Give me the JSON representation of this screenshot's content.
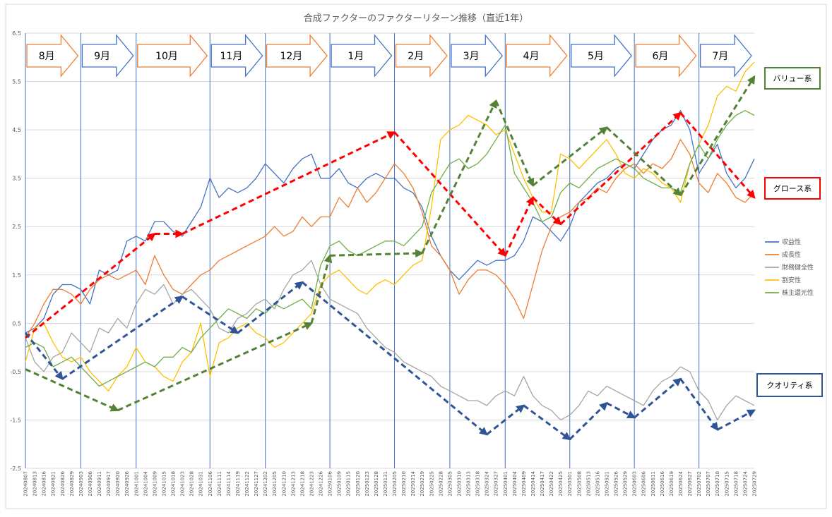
{
  "chart_data": {
    "type": "line",
    "title": "合成ファクターのファクターリターン推移（直近1年）",
    "ylim": [
      -2.5,
      6.5
    ],
    "y_ticks": [
      "6.5",
      "5.5",
      "4.5",
      "3.5",
      "2.5",
      "1.5",
      "0.5",
      "-0.5",
      "-1.5",
      "-2.5"
    ],
    "y_tick_values": [
      6.5,
      5.5,
      4.5,
      3.5,
      2.5,
      1.5,
      0.5,
      -0.5,
      -1.5,
      -2.5
    ],
    "grid": true,
    "legend_position": "right",
    "x_dates": [
      "20240807",
      "20240813",
      "20240816",
      "20240821",
      "20240826",
      "20240829",
      "20240903",
      "20240906",
      "20240911",
      "20240917",
      "20240920",
      "20240926",
      "20241001",
      "20241004",
      "20241009",
      "20241015",
      "20241018",
      "20241023",
      "20241028",
      "20241031",
      "20241106",
      "20241111",
      "20241114",
      "20241119",
      "20241122",
      "20241127",
      "20241202",
      "20241205",
      "20241210",
      "20241213",
      "20241218",
      "20241223",
      "20241226",
      "20250106",
      "20250109",
      "20250115",
      "20250120",
      "20250123",
      "20250128",
      "20250131",
      "20250205",
      "20250210",
      "20250214",
      "20250219",
      "20250225",
      "20250228",
      "20250305",
      "20250310",
      "20250313",
      "20250318",
      "20250324",
      "20250327",
      "20250401",
      "20250404",
      "20250409",
      "20250414",
      "20250417",
      "20250422",
      "20250425",
      "20250501",
      "20250508",
      "20250513",
      "20250516",
      "20250521",
      "20250526",
      "20250529",
      "20250603",
      "20250606",
      "20250611",
      "20250616",
      "20250619",
      "20250624",
      "20250627",
      "20250702",
      "20250707",
      "20250710",
      "20250715",
      "20250718",
      "20250724",
      "20250729"
    ],
    "series": [
      {
        "name": "収益性",
        "color": "#4472C4",
        "values": [
          0.3,
          0.4,
          0.6,
          1.1,
          1.3,
          1.3,
          1.2,
          0.9,
          1.6,
          1.5,
          1.6,
          2.2,
          2.3,
          2.2,
          2.6,
          2.6,
          2.4,
          2.3,
          2.6,
          2.9,
          3.5,
          3.1,
          3.3,
          3.2,
          3.3,
          3.5,
          3.8,
          3.6,
          3.4,
          3.7,
          3.9,
          4.0,
          3.5,
          3.5,
          3.7,
          3.4,
          3.3,
          3.5,
          3.6,
          3.5,
          3.5,
          3.3,
          3.2,
          2.9,
          2.3,
          1.9,
          1.6,
          1.4,
          1.6,
          1.8,
          1.7,
          1.8,
          1.8,
          1.9,
          2.2,
          2.7,
          2.6,
          2.4,
          2.2,
          2.5,
          3.0,
          3.2,
          3.4,
          3.5,
          3.7,
          3.8,
          3.7,
          4.0,
          4.3,
          4.5,
          4.6,
          4.9,
          4.5,
          3.6,
          3.9,
          4.2,
          3.6,
          3.3,
          3.5,
          3.9
        ]
      },
      {
        "name": "成長性",
        "color": "#ED7D31",
        "values": [
          0.2,
          0.5,
          0.9,
          1.2,
          1.2,
          1.1,
          0.9,
          1.2,
          1.4,
          1.5,
          1.4,
          1.5,
          1.6,
          1.3,
          1.9,
          1.5,
          1.2,
          1.1,
          1.3,
          1.5,
          1.6,
          1.8,
          1.9,
          2.0,
          2.1,
          2.2,
          2.3,
          2.5,
          2.3,
          2.4,
          2.7,
          2.5,
          2.7,
          2.7,
          3.1,
          2.9,
          3.3,
          3.0,
          3.2,
          3.5,
          3.8,
          3.6,
          3.3,
          2.8,
          2.1,
          1.9,
          1.6,
          1.1,
          1.4,
          1.6,
          1.6,
          1.5,
          1.3,
          1.0,
          0.6,
          1.3,
          2.0,
          2.5,
          2.7,
          2.8,
          3.0,
          3.1,
          3.3,
          3.2,
          3.5,
          3.7,
          3.8,
          3.6,
          3.8,
          3.7,
          3.9,
          4.3,
          4.0,
          3.4,
          3.2,
          3.6,
          3.4,
          3.1,
          3.0,
          3.2
        ]
      },
      {
        "name": "財務健全性",
        "color": "#A5A5A5",
        "values": [
          0.2,
          -0.3,
          -0.5,
          -0.2,
          -0.1,
          0.3,
          0.1,
          -0.1,
          0.4,
          0.3,
          0.6,
          0.4,
          0.9,
          1.2,
          1.1,
          1.3,
          0.9,
          1.1,
          1.2,
          1.0,
          0.8,
          0.4,
          0.3,
          0.6,
          0.7,
          0.9,
          1.0,
          0.8,
          1.2,
          1.5,
          1.6,
          1.8,
          1.3,
          1.0,
          0.9,
          0.8,
          0.7,
          0.4,
          0.2,
          0.0,
          -0.1,
          -0.3,
          -0.4,
          -0.5,
          -0.6,
          -0.8,
          -0.9,
          -1.0,
          -1.1,
          -1.1,
          -1.2,
          -1.0,
          -0.9,
          -1.0,
          -0.6,
          -1.0,
          -1.2,
          -1.3,
          -1.5,
          -1.4,
          -1.2,
          -0.9,
          -1.0,
          -0.8,
          -0.9,
          -1.0,
          -1.1,
          -1.2,
          -0.9,
          -0.7,
          -0.6,
          -0.4,
          -0.5,
          -0.9,
          -1.1,
          -1.5,
          -1.2,
          -1.0,
          -1.1,
          -1.2
        ]
      },
      {
        "name": "割安性",
        "color": "#FFC000",
        "values": [
          -0.3,
          0.4,
          0.5,
          0.1,
          -0.2,
          -0.3,
          -0.2,
          -0.5,
          -0.7,
          -0.9,
          -0.6,
          -0.4,
          0.0,
          -0.3,
          -0.4,
          -0.6,
          -0.7,
          -0.3,
          -0.1,
          0.5,
          -0.6,
          0.1,
          0.2,
          0.4,
          0.5,
          0.3,
          0.2,
          0.0,
          0.1,
          0.3,
          0.5,
          0.7,
          1.3,
          1.5,
          1.6,
          1.4,
          1.2,
          1.1,
          1.3,
          1.4,
          1.3,
          1.5,
          1.7,
          1.8,
          2.9,
          4.3,
          4.5,
          4.6,
          4.8,
          4.7,
          4.6,
          4.4,
          4.5,
          4.0,
          3.5,
          3.1,
          2.8,
          2.8,
          4.0,
          3.9,
          3.7,
          3.9,
          4.1,
          4.3,
          4.0,
          3.6,
          3.5,
          3.7,
          3.6,
          3.4,
          3.3,
          3.0,
          3.8,
          4.2,
          4.6,
          5.2,
          5.4,
          5.3,
          5.7,
          5.9
        ]
      },
      {
        "name": "株主還元性",
        "color": "#70AD47",
        "values": [
          0.0,
          0.1,
          0.0,
          -0.4,
          -0.3,
          -0.2,
          -0.4,
          -0.6,
          -0.8,
          -0.7,
          -0.6,
          -0.5,
          -0.4,
          -0.3,
          -0.4,
          -0.2,
          -0.2,
          0.0,
          -0.1,
          0.2,
          0.4,
          0.6,
          0.8,
          0.7,
          0.6,
          0.8,
          0.7,
          0.9,
          0.8,
          0.9,
          1.0,
          0.8,
          1.7,
          2.1,
          2.2,
          2.0,
          1.9,
          2.0,
          2.1,
          2.2,
          2.2,
          2.1,
          2.3,
          2.5,
          3.2,
          3.5,
          3.8,
          3.9,
          3.7,
          3.8,
          4.0,
          4.3,
          4.6,
          3.6,
          3.3,
          3.0,
          2.6,
          2.7,
          3.2,
          3.4,
          3.3,
          3.5,
          3.7,
          3.8,
          3.9,
          3.8,
          3.7,
          3.5,
          3.4,
          3.3,
          3.3,
          3.2,
          3.8,
          4.2,
          3.9,
          4.3,
          4.6,
          4.8,
          4.9,
          4.8
        ]
      }
    ],
    "months": [
      {
        "label": "8月",
        "color": "#ED7D31"
      },
      {
        "label": "9月",
        "color": "#4472C4"
      },
      {
        "label": "10月",
        "color": "#ED7D31"
      },
      {
        "label": "11月",
        "color": "#4472C4"
      },
      {
        "label": "12月",
        "color": "#ED7D31"
      },
      {
        "label": "1月",
        "color": "#4472C4"
      },
      {
        "label": "2月",
        "color": "#ED7D31"
      },
      {
        "label": "3月",
        "color": "#4472C4"
      },
      {
        "label": "4月",
        "color": "#ED7D31"
      },
      {
        "label": "5月",
        "color": "#4472C4"
      },
      {
        "label": "6月",
        "color": "#ED7D31"
      },
      {
        "label": "7月",
        "color": "#4472C4"
      }
    ],
    "annotations": [
      {
        "label": "バリュー系",
        "color": "#548235"
      },
      {
        "label": "グロース系",
        "color": "#FF0000"
      },
      {
        "label": "クオリティ系",
        "color": "#2F5597"
      }
    ],
    "trend_lines": [
      {
        "group": "グロース系",
        "color": "#FF0000",
        "points": [
          [
            "20240807",
            0.2
          ],
          [
            "20241009",
            2.35
          ],
          [
            "20241023",
            2.35
          ],
          [
            "20250205",
            4.45
          ],
          [
            "20250401",
            1.9
          ],
          [
            "20250414",
            3.1
          ],
          [
            "20250425",
            2.55
          ],
          [
            "20250624",
            4.85
          ],
          [
            "20250729",
            3.1
          ]
        ]
      },
      {
        "group": "バリュー系",
        "color": "#548235",
        "points": [
          [
            "20240807",
            -0.45
          ],
          [
            "20240920",
            -1.3
          ],
          [
            "20241223",
            0.5
          ],
          [
            "20250106",
            1.9
          ],
          [
            "20250219",
            1.95
          ],
          [
            "20250327",
            5.1
          ],
          [
            "20250414",
            3.35
          ],
          [
            "20250521",
            4.55
          ],
          [
            "20250624",
            3.15
          ],
          [
            "20250729",
            5.6
          ]
        ]
      },
      {
        "group": "クオリティ系",
        "color": "#2F5597",
        "points": [
          [
            "20240807",
            0.3
          ],
          [
            "20240826",
            -0.65
          ],
          [
            "20241023",
            1.05
          ],
          [
            "20241119",
            0.3
          ],
          [
            "20241218",
            1.35
          ],
          [
            "20250324",
            -1.8
          ],
          [
            "20250409",
            -1.2
          ],
          [
            "20250501",
            -1.9
          ],
          [
            "20250521",
            -1.15
          ],
          [
            "20250603",
            -1.45
          ],
          [
            "20250624",
            -0.65
          ],
          [
            "20250710",
            -1.7
          ],
          [
            "20250729",
            -1.3
          ]
        ]
      }
    ]
  }
}
